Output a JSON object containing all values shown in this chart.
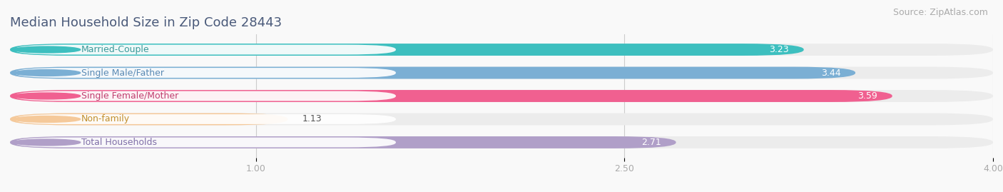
{
  "title": "Median Household Size in Zip Code 28443",
  "source": "Source: ZipAtlas.com",
  "categories": [
    "Married-Couple",
    "Single Male/Father",
    "Single Female/Mother",
    "Non-family",
    "Total Households"
  ],
  "values": [
    3.23,
    3.44,
    3.59,
    1.13,
    2.71
  ],
  "bar_colors": [
    "#3dbfbf",
    "#7bafd4",
    "#f06090",
    "#f5c99a",
    "#b09fc8"
  ],
  "label_dot_colors": [
    "#3dbfbf",
    "#7bafd4",
    "#f06090",
    "#f5c99a",
    "#b09fc8"
  ],
  "bar_bg_color": "#ececec",
  "xlim": [
    0,
    4.0
  ],
  "xticks": [
    1.0,
    2.5,
    4.0
  ],
  "value_color_light": "#ffffff",
  "value_color_dark": "#555555",
  "background_color": "#f9f9f9",
  "title_fontsize": 13,
  "source_fontsize": 9,
  "label_fontsize": 9,
  "value_fontsize": 9,
  "title_color": "#4a5a7a",
  "source_color": "#aaaaaa",
  "tick_color": "#aaaaaa",
  "label_text_colors": [
    "#3a9a9a",
    "#5a8ab4",
    "#c04070",
    "#c09030",
    "#8070a8"
  ]
}
